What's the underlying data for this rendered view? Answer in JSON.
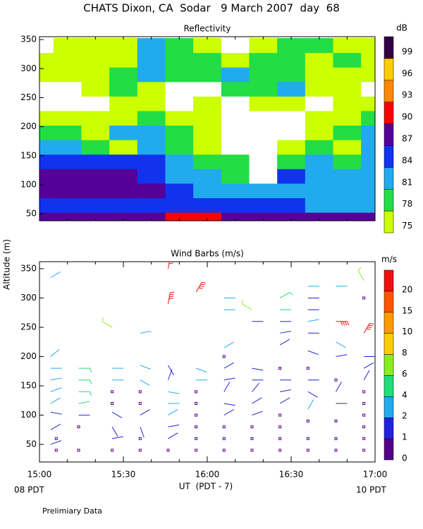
{
  "title": "CHATS Dixon, CA  Sodar   9 March 2007  day  68",
  "y_label": "Altitude (m)",
  "x_label": "UT  (PDT - 7)",
  "x_left_note": "08 PDT",
  "x_right_note": "10 PDT",
  "footer": "Prelimiary Data",
  "chart_data": [
    {
      "type": "heatmap",
      "title": "Reflectivity",
      "colorbar_label": "dB",
      "xlim": [
        0,
        120
      ],
      "ylim": [
        38,
        355
      ],
      "xticks": [
        0,
        10,
        20,
        30,
        40,
        50,
        60,
        70,
        80,
        90,
        100,
        110,
        120
      ],
      "yticks": [
        50,
        100,
        150,
        200,
        250,
        300,
        350
      ],
      "x": [
        0,
        10,
        20,
        30,
        40,
        50,
        60,
        70,
        80,
        90,
        100,
        110,
        120
      ],
      "y": [
        40,
        65,
        90,
        115,
        140,
        165,
        190,
        215,
        240,
        265,
        290,
        315,
        340
      ],
      "z": [
        [
          88,
          88,
          88,
          88,
          88,
          91,
          91,
          88,
          88,
          88,
          88,
          88,
          88
        ],
        [
          85,
          85,
          85,
          85,
          85,
          85,
          85,
          84,
          84,
          84,
          82,
          82,
          82
        ],
        [
          88,
          88,
          88,
          88,
          88,
          85,
          82,
          82,
          82,
          82,
          82,
          82,
          82
        ],
        [
          88,
          88,
          88,
          88,
          86,
          82,
          82,
          79,
          70,
          85,
          82,
          82,
          82
        ],
        [
          86,
          86,
          86,
          85,
          86,
          82,
          78,
          78,
          70,
          79,
          82,
          79,
          82
        ],
        [
          83,
          83,
          79,
          76,
          82,
          79,
          76,
          70,
          70,
          76,
          79,
          76,
          82
        ],
        [
          79,
          79,
          76,
          82,
          82,
          79,
          76,
          70,
          70,
          70,
          76,
          79,
          82
        ],
        [
          76,
          76,
          76,
          76,
          79,
          76,
          76,
          70,
          70,
          70,
          76,
          76,
          79
        ],
        [
          70,
          70,
          70,
          76,
          76,
          70,
          76,
          70,
          76,
          76,
          70,
          76,
          76
        ],
        [
          70,
          70,
          76,
          79,
          76,
          70,
          70,
          79,
          79,
          82,
          76,
          76,
          70
        ],
        [
          76,
          76,
          76,
          79,
          82,
          79,
          79,
          82,
          79,
          79,
          76,
          76,
          76
        ],
        [
          76,
          76,
          76,
          76,
          82,
          79,
          79,
          76,
          79,
          79,
          76,
          79,
          76
        ],
        [
          70,
          76,
          76,
          76,
          82,
          79,
          76,
          70,
          76,
          79,
          79,
          76,
          76
        ]
      ],
      "levels": [
        75,
        78,
        81,
        84,
        87,
        90,
        93,
        96,
        99
      ],
      "colors": [
        "#ccff00",
        "#22dd44",
        "#22aaee",
        "#1133ee",
        "#550099",
        "#ff0000",
        "#ff8800",
        "#ffcc00",
        "#330044"
      ]
    },
    {
      "type": "barbs",
      "title": "Wind Barbs (m/s)",
      "colorbar_label": "m/s",
      "xlim": [
        0,
        120
      ],
      "ylim": [
        20,
        362
      ],
      "xticks": [
        {
          "value": 0,
          "label": "15:00"
        },
        10,
        20,
        {
          "value": 30,
          "label": "15:30"
        },
        40,
        50,
        {
          "value": 60,
          "label": "16:00"
        },
        70,
        80,
        {
          "value": 90,
          "label": "16:30"
        },
        100,
        110,
        {
          "value": 120,
          "label": "17:00"
        }
      ],
      "yticks": [
        50,
        100,
        150,
        200,
        250,
        300,
        350
      ],
      "levels": [
        0,
        1,
        2,
        4,
        6,
        8,
        10,
        15,
        20
      ],
      "colors": [
        "#550088",
        "#2222dd",
        "#22aaee",
        "#22dd77",
        "#88ee22",
        "#ffcc00",
        "#ff9900",
        "#ff5500",
        "#ee1111"
      ],
      "points": [
        [
          4,
          335,
          3,
          60
        ],
        [
          4,
          200,
          3,
          50
        ],
        [
          4,
          180,
          3,
          90
        ],
        [
          4,
          160,
          3,
          80
        ],
        [
          4,
          140,
          3,
          70
        ],
        [
          4,
          120,
          3,
          60
        ],
        [
          4,
          105,
          1.5,
          100
        ],
        [
          4,
          75,
          1.5,
          60
        ],
        [
          4,
          50,
          1.5,
          70
        ],
        [
          6,
          60,
          0,
          0
        ],
        [
          6,
          40,
          0,
          0
        ],
        [
          14,
          180,
          5,
          90
        ],
        [
          14,
          160,
          5,
          90
        ],
        [
          14,
          140,
          5,
          90
        ],
        [
          14,
          120,
          4.5,
          80
        ],
        [
          14,
          100,
          1.5,
          90
        ],
        [
          14,
          80,
          0,
          0
        ],
        [
          14,
          40,
          0,
          0
        ],
        [
          26,
          250,
          6,
          300
        ],
        [
          26,
          180,
          3,
          90
        ],
        [
          26,
          160,
          3,
          90
        ],
        [
          26,
          140,
          0,
          0
        ],
        [
          26,
          120,
          0,
          0
        ],
        [
          26,
          105,
          1.5,
          120
        ],
        [
          26,
          80,
          1.5,
          150
        ],
        [
          26,
          60,
          1.5,
          80
        ],
        [
          26,
          40,
          0,
          0
        ],
        [
          36,
          240,
          3,
          80
        ],
        [
          36,
          185,
          3,
          110
        ],
        [
          36,
          160,
          3,
          120
        ],
        [
          36,
          140,
          0,
          0
        ],
        [
          36,
          120,
          0,
          0
        ],
        [
          36,
          100,
          1.5,
          60
        ],
        [
          36,
          80,
          1.5,
          160
        ],
        [
          36,
          60,
          0,
          0
        ],
        [
          36,
          40,
          0,
          0
        ],
        [
          46,
          350,
          20,
          10
        ],
        [
          46,
          290,
          20,
          10
        ],
        [
          46,
          185,
          1.5,
          150
        ],
        [
          46,
          160,
          1.5,
          20
        ],
        [
          46,
          140,
          3,
          100
        ],
        [
          46,
          120,
          3,
          90
        ],
        [
          46,
          100,
          3,
          60
        ],
        [
          46,
          80,
          1.5,
          80
        ],
        [
          46,
          60,
          1.5,
          60
        ],
        [
          46,
          40,
          0,
          0
        ],
        [
          56,
          310,
          20,
          30
        ],
        [
          56,
          180,
          3,
          110
        ],
        [
          56,
          160,
          3,
          90
        ],
        [
          56,
          140,
          0,
          0
        ],
        [
          56,
          120,
          0,
          0
        ],
        [
          56,
          100,
          0,
          0
        ],
        [
          56,
          80,
          0,
          0
        ],
        [
          56,
          60,
          0,
          0
        ],
        [
          56,
          40,
          0,
          0
        ],
        [
          66,
          300,
          3,
          90
        ],
        [
          66,
          280,
          3,
          90
        ],
        [
          66,
          215,
          3,
          60
        ],
        [
          66,
          200,
          0,
          0
        ],
        [
          66,
          180,
          1.5,
          60
        ],
        [
          66,
          160,
          1.5,
          80
        ],
        [
          66,
          140,
          1.5,
          30
        ],
        [
          66,
          120,
          1.5,
          100
        ],
        [
          66,
          100,
          1.5,
          60
        ],
        [
          66,
          80,
          0,
          0
        ],
        [
          66,
          60,
          0,
          0
        ],
        [
          66,
          40,
          0,
          0
        ],
        [
          76,
          280,
          6,
          300
        ],
        [
          76,
          260,
          1.5,
          90
        ],
        [
          76,
          180,
          1.5,
          100
        ],
        [
          76,
          160,
          1.5,
          90
        ],
        [
          76,
          140,
          1.5,
          40
        ],
        [
          76,
          120,
          1.5,
          60
        ],
        [
          76,
          100,
          1.5,
          70
        ],
        [
          76,
          80,
          0,
          0
        ],
        [
          76,
          60,
          0,
          0
        ],
        [
          76,
          40,
          0,
          0
        ],
        [
          86,
          300,
          5,
          60
        ],
        [
          86,
          280,
          4,
          90
        ],
        [
          86,
          260,
          1.5,
          90
        ],
        [
          86,
          240,
          1.5,
          80
        ],
        [
          86,
          220,
          1.5,
          60
        ],
        [
          86,
          180,
          0,
          0
        ],
        [
          86,
          160,
          1.5,
          90
        ],
        [
          86,
          140,
          1.5,
          80
        ],
        [
          86,
          120,
          1.5,
          60
        ],
        [
          86,
          100,
          0,
          0
        ],
        [
          86,
          80,
          0,
          0
        ],
        [
          86,
          60,
          0,
          0
        ],
        [
          86,
          40,
          0,
          0
        ],
        [
          96,
          320,
          3,
          90
        ],
        [
          96,
          300,
          1.5,
          90
        ],
        [
          96,
          280,
          1.5,
          90
        ],
        [
          96,
          260,
          3,
          80
        ],
        [
          96,
          240,
          1.5,
          90
        ],
        [
          96,
          210,
          1.5,
          110
        ],
        [
          96,
          180,
          0,
          0
        ],
        [
          96,
          160,
          1.5,
          90
        ],
        [
          96,
          140,
          1.5,
          120
        ],
        [
          96,
          110,
          3,
          30
        ],
        [
          96,
          90,
          0,
          0
        ],
        [
          96,
          60,
          0,
          0
        ],
        [
          96,
          40,
          0,
          0
        ],
        [
          106,
          320,
          3,
          90
        ],
        [
          106,
          260,
          20,
          90
        ],
        [
          106,
          225,
          3,
          120
        ],
        [
          106,
          200,
          1.5,
          80
        ],
        [
          106,
          160,
          0,
          0
        ],
        [
          106,
          140,
          1.5,
          30
        ],
        [
          106,
          120,
          1.5,
          90
        ],
        [
          106,
          90,
          0,
          0
        ],
        [
          106,
          60,
          0,
          0
        ],
        [
          106,
          40,
          0,
          0
        ],
        [
          116,
          330,
          6,
          330
        ],
        [
          116,
          300,
          0,
          0
        ],
        [
          116,
          240,
          20,
          30
        ],
        [
          116,
          200,
          1.5,
          90
        ],
        [
          116,
          180,
          1.5,
          60
        ],
        [
          116,
          160,
          1.5,
          30
        ],
        [
          116,
          140,
          0,
          0
        ],
        [
          116,
          120,
          0,
          0
        ],
        [
          116,
          100,
          0,
          0
        ],
        [
          116,
          80,
          0,
          0
        ],
        [
          116,
          60,
          0,
          0
        ],
        [
          116,
          40,
          0,
          0
        ]
      ]
    }
  ]
}
